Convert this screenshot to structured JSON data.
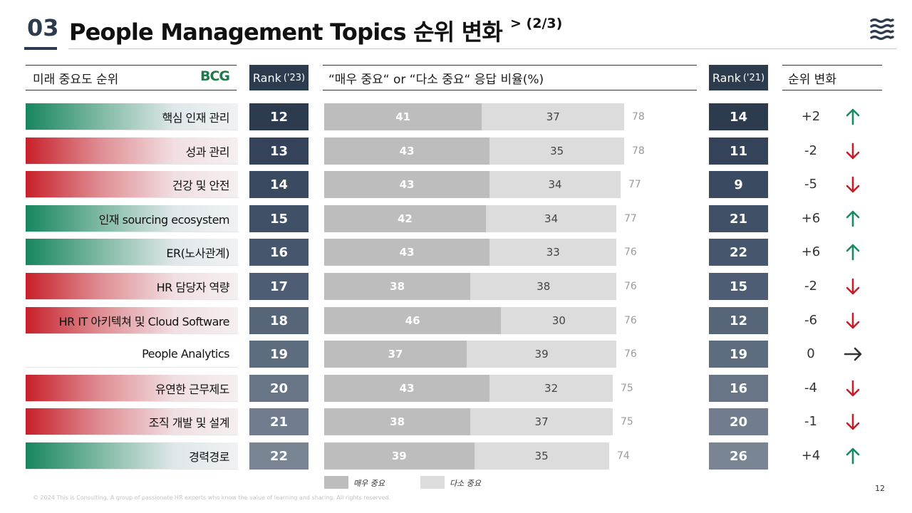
{
  "header": {
    "number": "03",
    "title": "People Management Topics 순위 변화",
    "subtitle": "> (2/3)",
    "menu_icon": "waves-menu-icon"
  },
  "columns": {
    "importance": "미래 중요도 순위",
    "logo": "BCG",
    "rank23": "Rank",
    "rank23_year": "('23)",
    "response": "“매우 중요“ or “다소 중요“ 응답 비율(%)",
    "rank21": "Rank",
    "rank21_year": "('21)",
    "change": "순위 변화"
  },
  "colors": {
    "navy": "#2d3b4e",
    "up_green": "#1a8a63",
    "down_red": "#c0202a",
    "very_bar": "#bdbdbd",
    "some_bar": "#dcdcdc"
  },
  "rows": [
    {
      "label": "핵심 인재 관리",
      "rank23": "12",
      "very": "41",
      "some": "37",
      "total": "78",
      "rank21": "14",
      "change": "+2",
      "dir": "up"
    },
    {
      "label": "성과 관리",
      "rank23": "13",
      "very": "43",
      "some": "35",
      "total": "78",
      "rank21": "11",
      "change": "-2",
      "dir": "down"
    },
    {
      "label": "건강 및 안전",
      "rank23": "14",
      "very": "43",
      "some": "34",
      "total": "77",
      "rank21": "9",
      "change": "-5",
      "dir": "down"
    },
    {
      "label": "인재 sourcing ecosystem",
      "rank23": "15",
      "very": "42",
      "some": "34",
      "total": "77",
      "rank21": "21",
      "change": "+6",
      "dir": "up"
    },
    {
      "label": "ER(노사관계)",
      "rank23": "16",
      "very": "43",
      "some": "33",
      "total": "76",
      "rank21": "22",
      "change": "+6",
      "dir": "up"
    },
    {
      "label": "HR 담당자 역량",
      "rank23": "17",
      "very": "38",
      "some": "38",
      "total": "76",
      "rank21": "15",
      "change": "-2",
      "dir": "down"
    },
    {
      "label": "HR IT 아키텍쳐 및 Cloud Software",
      "rank23": "18",
      "very": "46",
      "some": "30",
      "total": "76",
      "rank21": "12",
      "change": "-6",
      "dir": "down"
    },
    {
      "label": "People Analytics",
      "rank23": "19",
      "very": "37",
      "some": "39",
      "total": "76",
      "rank21": "19",
      "change": "0",
      "dir": "none"
    },
    {
      "label": "유연한 근무제도",
      "rank23": "20",
      "very": "43",
      "some": "32",
      "total": "75",
      "rank21": "16",
      "change": "-4",
      "dir": "down"
    },
    {
      "label": "조직 개발 및 설계",
      "rank23": "21",
      "very": "38",
      "some": "37",
      "total": "75",
      "rank21": "20",
      "change": "-1",
      "dir": "down"
    },
    {
      "label": "경력경로",
      "rank23": "22",
      "very": "39",
      "some": "35",
      "total": "74",
      "rank21": "26",
      "change": "+4",
      "dir": "up"
    }
  ],
  "legend": {
    "very": "매우 중요",
    "some": "다소 중요"
  },
  "footer": "© 2024 This is Consulting. A group of passionate HR experts who know the value of learning and sharing. All rights reserved.",
  "page_number": "12"
}
